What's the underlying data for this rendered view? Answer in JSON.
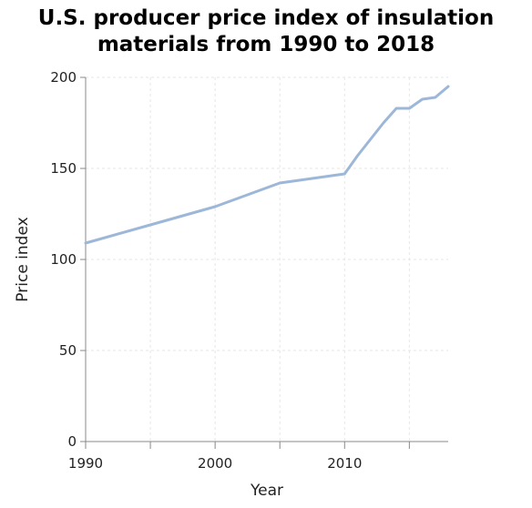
{
  "chart_data": {
    "type": "line",
    "title_lines": [
      "U.S. producer price index of insulation",
      "materials from 1990 to 2018"
    ],
    "xlabel": "Year",
    "ylabel": "Price index",
    "xlim": [
      1990,
      2018
    ],
    "ylim": [
      0,
      200
    ],
    "xticks": [
      1990,
      1995,
      2000,
      2005,
      2010,
      2015
    ],
    "xtick_labels": [
      "1990",
      "",
      "2000",
      "",
      "2010",
      ""
    ],
    "yticks": [
      0,
      50,
      100,
      150,
      200
    ],
    "ytick_labels": [
      "0",
      "50",
      "100",
      "150",
      "200"
    ],
    "grid": true,
    "line_color": "#9db7d8",
    "series": [
      {
        "x": [
          1990,
          1995,
          2000,
          2005,
          2010,
          2011,
          2012,
          2013,
          2014,
          2015,
          2016,
          2017,
          2018
        ],
        "values": [
          109,
          119,
          129,
          142,
          147,
          157,
          166,
          175,
          183,
          183,
          188,
          189,
          195
        ]
      }
    ]
  }
}
